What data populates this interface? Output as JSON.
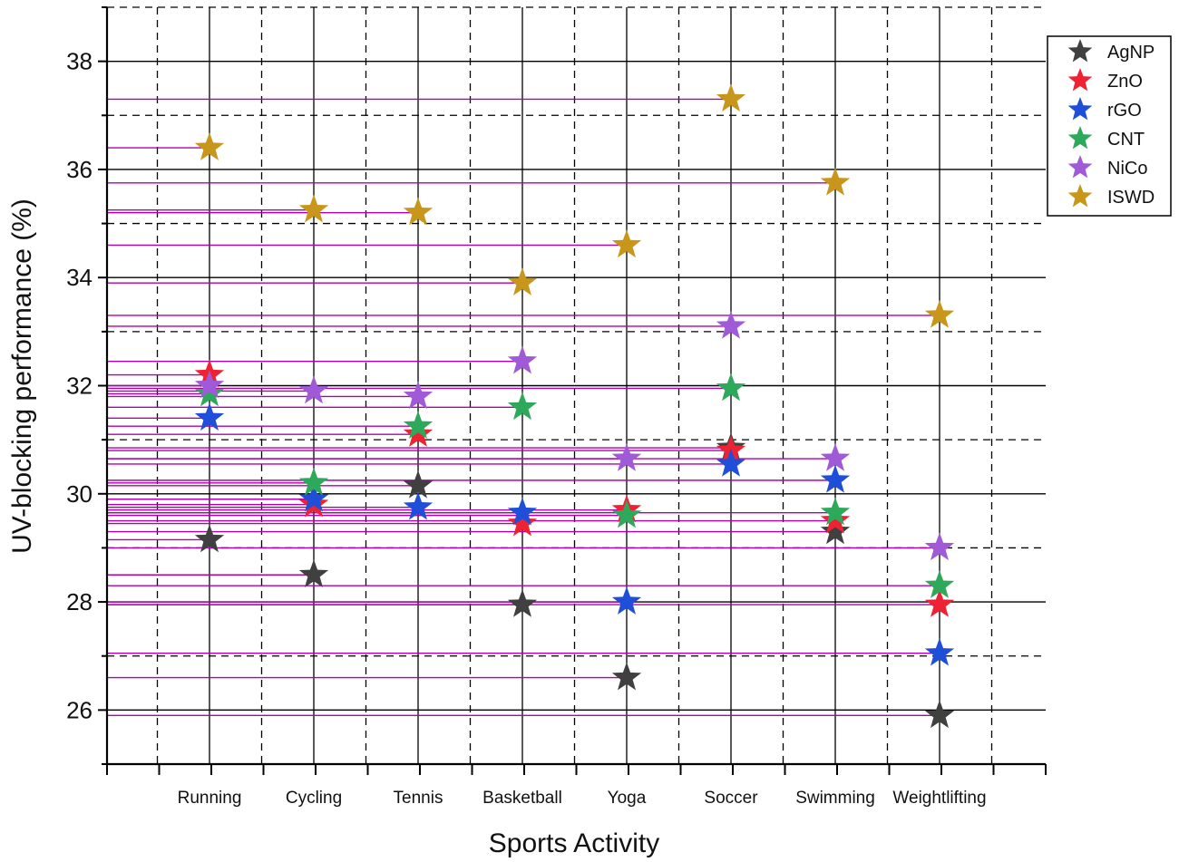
{
  "chart_data": {
    "type": "scatter",
    "xlabel": "Sports Activity",
    "ylabel": "UV-blocking performance (%)",
    "categories": [
      "Running",
      "Cycling",
      "Tennis",
      "Basketball",
      "Yoga",
      "Soccer",
      "Swimming",
      "Weightlifting"
    ],
    "ylim": [
      25,
      39
    ],
    "yticks": [
      26,
      28,
      30,
      32,
      34,
      36,
      38
    ],
    "grid": true,
    "legend_position": "top-right",
    "drop_line_color": "#b000b0",
    "series": [
      {
        "name": "AgNP",
        "color": "#404040",
        "values": [
          29.15,
          28.5,
          30.15,
          27.95,
          26.6,
          30.85,
          29.3,
          25.9
        ]
      },
      {
        "name": "ZnO",
        "color": "#ee2233",
        "values": [
          32.2,
          29.8,
          31.1,
          29.45,
          29.7,
          30.8,
          29.5,
          27.95
        ]
      },
      {
        "name": "rGO",
        "color": "#1f4fd8",
        "values": [
          31.4,
          29.9,
          29.75,
          29.65,
          28.0,
          30.55,
          30.25,
          27.05
        ]
      },
      {
        "name": "CNT",
        "color": "#2ea85a",
        "values": [
          31.85,
          30.2,
          31.25,
          31.6,
          29.6,
          31.95,
          29.65,
          28.3
        ]
      },
      {
        "name": "NiCo",
        "color": "#a05ad8",
        "values": [
          32.0,
          31.9,
          31.8,
          32.45,
          30.65,
          33.1,
          30.65,
          29.0
        ]
      },
      {
        "name": "ISWD",
        "color": "#c8961a",
        "values": [
          36.4,
          35.25,
          35.2,
          33.9,
          34.6,
          37.3,
          35.75,
          33.3
        ]
      }
    ]
  }
}
